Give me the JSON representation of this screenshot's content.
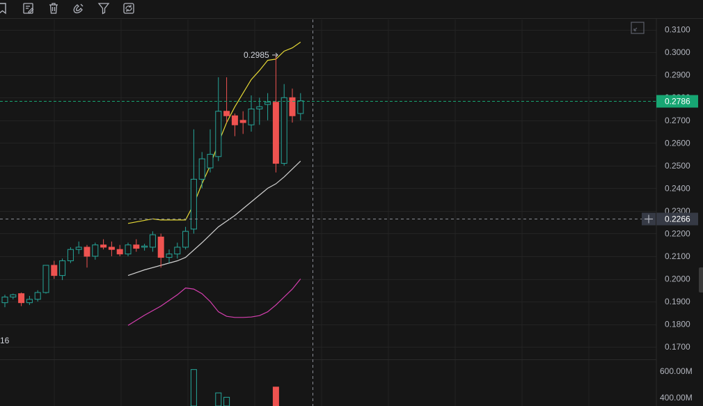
{
  "toolbar": {
    "icons": [
      "bookmark-icon",
      "edit-list-icon",
      "trash-icon",
      "magnet-icon",
      "filter-icon",
      "sync-icon"
    ]
  },
  "colors": {
    "background": "#161616",
    "up": "#26a69a",
    "down": "#ef5350",
    "ma_short": "#e6d936",
    "ma_long": "#d1d1d1",
    "indicator": "#d63fb0",
    "grid": "#232323",
    "price_tag": "#17a673",
    "cursor_tag": "#363a45"
  },
  "chart_data": {
    "type": "candlestick",
    "y_axis": {
      "ticks": [
        "0.3100",
        "0.3000",
        "0.2900",
        "0.2800",
        "0.2700",
        "0.2600",
        "0.2500",
        "0.2400",
        "0.2300",
        "0.2200",
        "0.2100",
        "0.2000",
        "0.1900",
        "0.1800",
        "0.1700"
      ],
      "range": [
        0.1645,
        0.3145
      ]
    },
    "current_price": {
      "value": 0.2786,
      "label": "0.2786"
    },
    "crosshair": {
      "value": 0.2266,
      "label": "0.2266"
    },
    "annotation": {
      "label": "0.2985",
      "value": 0.2985
    },
    "left_partial_label": "16",
    "candles": [
      {
        "o": 0.1895,
        "h": 0.193,
        "l": 0.1875,
        "c": 0.192
      },
      {
        "o": 0.192,
        "h": 0.1935,
        "l": 0.191,
        "c": 0.193
      },
      {
        "o": 0.1935,
        "h": 0.194,
        "l": 0.188,
        "c": 0.1895
      },
      {
        "o": 0.1895,
        "h": 0.1925,
        "l": 0.1885,
        "c": 0.191
      },
      {
        "o": 0.191,
        "h": 0.195,
        "l": 0.19,
        "c": 0.194
      },
      {
        "o": 0.194,
        "h": 0.206,
        "l": 0.1935,
        "c": 0.206
      },
      {
        "o": 0.206,
        "h": 0.208,
        "l": 0.2,
        "c": 0.2015
      },
      {
        "o": 0.2015,
        "h": 0.209,
        "l": 0.1995,
        "c": 0.208
      },
      {
        "o": 0.208,
        "h": 0.214,
        "l": 0.207,
        "c": 0.213
      },
      {
        "o": 0.213,
        "h": 0.2165,
        "l": 0.211,
        "c": 0.214
      },
      {
        "o": 0.214,
        "h": 0.215,
        "l": 0.205,
        "c": 0.21
      },
      {
        "o": 0.21,
        "h": 0.216,
        "l": 0.2085,
        "c": 0.215
      },
      {
        "o": 0.215,
        "h": 0.2175,
        "l": 0.213,
        "c": 0.214
      },
      {
        "o": 0.214,
        "h": 0.2165,
        "l": 0.21,
        "c": 0.213
      },
      {
        "o": 0.213,
        "h": 0.215,
        "l": 0.21,
        "c": 0.211
      },
      {
        "o": 0.211,
        "h": 0.216,
        "l": 0.21,
        "c": 0.215
      },
      {
        "o": 0.215,
        "h": 0.2175,
        "l": 0.212,
        "c": 0.2135
      },
      {
        "o": 0.214,
        "h": 0.2155,
        "l": 0.2125,
        "c": 0.2145
      },
      {
        "o": 0.214,
        "h": 0.221,
        "l": 0.212,
        "c": 0.2195
      },
      {
        "o": 0.2185,
        "h": 0.22,
        "l": 0.205,
        "c": 0.2095
      },
      {
        "o": 0.2095,
        "h": 0.213,
        "l": 0.207,
        "c": 0.211
      },
      {
        "o": 0.211,
        "h": 0.216,
        "l": 0.209,
        "c": 0.214
      },
      {
        "o": 0.214,
        "h": 0.223,
        "l": 0.213,
        "c": 0.221
      },
      {
        "o": 0.222,
        "h": 0.266,
        "l": 0.22,
        "c": 0.244
      },
      {
        "o": 0.244,
        "h": 0.256,
        "l": 0.24,
        "c": 0.253
      },
      {
        "o": 0.249,
        "h": 0.266,
        "l": 0.247,
        "c": 0.255
      },
      {
        "o": 0.254,
        "h": 0.289,
        "l": 0.252,
        "c": 0.274
      },
      {
        "o": 0.274,
        "h": 0.289,
        "l": 0.269,
        "c": 0.272
      },
      {
        "o": 0.272,
        "h": 0.273,
        "l": 0.263,
        "c": 0.268
      },
      {
        "o": 0.27,
        "h": 0.274,
        "l": 0.264,
        "c": 0.269
      },
      {
        "o": 0.268,
        "h": 0.281,
        "l": 0.265,
        "c": 0.275
      },
      {
        "o": 0.275,
        "h": 0.28,
        "l": 0.268,
        "c": 0.276
      },
      {
        "o": 0.277,
        "h": 0.282,
        "l": 0.27,
        "c": 0.278
      },
      {
        "o": 0.278,
        "h": 0.2985,
        "l": 0.247,
        "c": 0.251
      },
      {
        "o": 0.251,
        "h": 0.286,
        "l": 0.25,
        "c": 0.28
      },
      {
        "o": 0.28,
        "h": 0.284,
        "l": 0.269,
        "c": 0.272
      },
      {
        "o": 0.273,
        "h": 0.282,
        "l": 0.27,
        "c": 0.2786
      }
    ],
    "ma_short": [
      {
        "i": 15,
        "v": 0.2245
      },
      {
        "i": 18,
        "v": 0.2265
      },
      {
        "i": 19,
        "v": 0.226
      },
      {
        "i": 22,
        "v": 0.226
      },
      {
        "i": 23,
        "v": 0.233
      },
      {
        "i": 24,
        "v": 0.242
      },
      {
        "i": 25,
        "v": 0.25
      },
      {
        "i": 26,
        "v": 0.26
      },
      {
        "i": 27,
        "v": 0.269
      },
      {
        "i": 28,
        "v": 0.276
      },
      {
        "i": 29,
        "v": 0.282
      },
      {
        "i": 30,
        "v": 0.288
      },
      {
        "i": 31,
        "v": 0.292
      },
      {
        "i": 32,
        "v": 0.2965
      },
      {
        "i": 33,
        "v": 0.297
      },
      {
        "i": 34,
        "v": 0.3005
      },
      {
        "i": 35,
        "v": 0.302
      },
      {
        "i": 36,
        "v": 0.3045
      }
    ],
    "ma_long": [
      {
        "i": 15,
        "v": 0.2015
      },
      {
        "i": 17,
        "v": 0.204
      },
      {
        "i": 19,
        "v": 0.206
      },
      {
        "i": 21,
        "v": 0.208
      },
      {
        "i": 22,
        "v": 0.2095
      },
      {
        "i": 24,
        "v": 0.216
      },
      {
        "i": 26,
        "v": 0.223
      },
      {
        "i": 28,
        "v": 0.228
      },
      {
        "i": 30,
        "v": 0.234
      },
      {
        "i": 32,
        "v": 0.24
      },
      {
        "i": 33,
        "v": 0.242
      },
      {
        "i": 34,
        "v": 0.245
      },
      {
        "i": 36,
        "v": 0.252
      }
    ],
    "indicator": [
      {
        "i": 15,
        "v": 0.1795
      },
      {
        "i": 17,
        "v": 0.184
      },
      {
        "i": 19,
        "v": 0.188
      },
      {
        "i": 21,
        "v": 0.193
      },
      {
        "i": 22,
        "v": 0.196
      },
      {
        "i": 23,
        "v": 0.1955
      },
      {
        "i": 24,
        "v": 0.1935
      },
      {
        "i": 25,
        "v": 0.19
      },
      {
        "i": 26,
        "v": 0.1855
      },
      {
        "i": 27,
        "v": 0.1835
      },
      {
        "i": 28,
        "v": 0.183
      },
      {
        "i": 29,
        "v": 0.183
      },
      {
        "i": 30,
        "v": 0.1832
      },
      {
        "i": 31,
        "v": 0.1838
      },
      {
        "i": 32,
        "v": 0.1855
      },
      {
        "i": 33,
        "v": 0.1885
      },
      {
        "i": 34,
        "v": 0.192
      },
      {
        "i": 35,
        "v": 0.1955
      },
      {
        "i": 36,
        "v": 0.2
      }
    ],
    "volume": {
      "ticks": [
        "600.00M",
        "400.00M"
      ],
      "bars": [
        {
          "i": 23,
          "v": 590,
          "up": true
        },
        {
          "i": 26,
          "v": 430,
          "up": true
        },
        {
          "i": 27,
          "v": 400,
          "up": true
        },
        {
          "i": 33,
          "v": 470,
          "up": false
        }
      ],
      "range": [
        340,
        660
      ]
    }
  }
}
